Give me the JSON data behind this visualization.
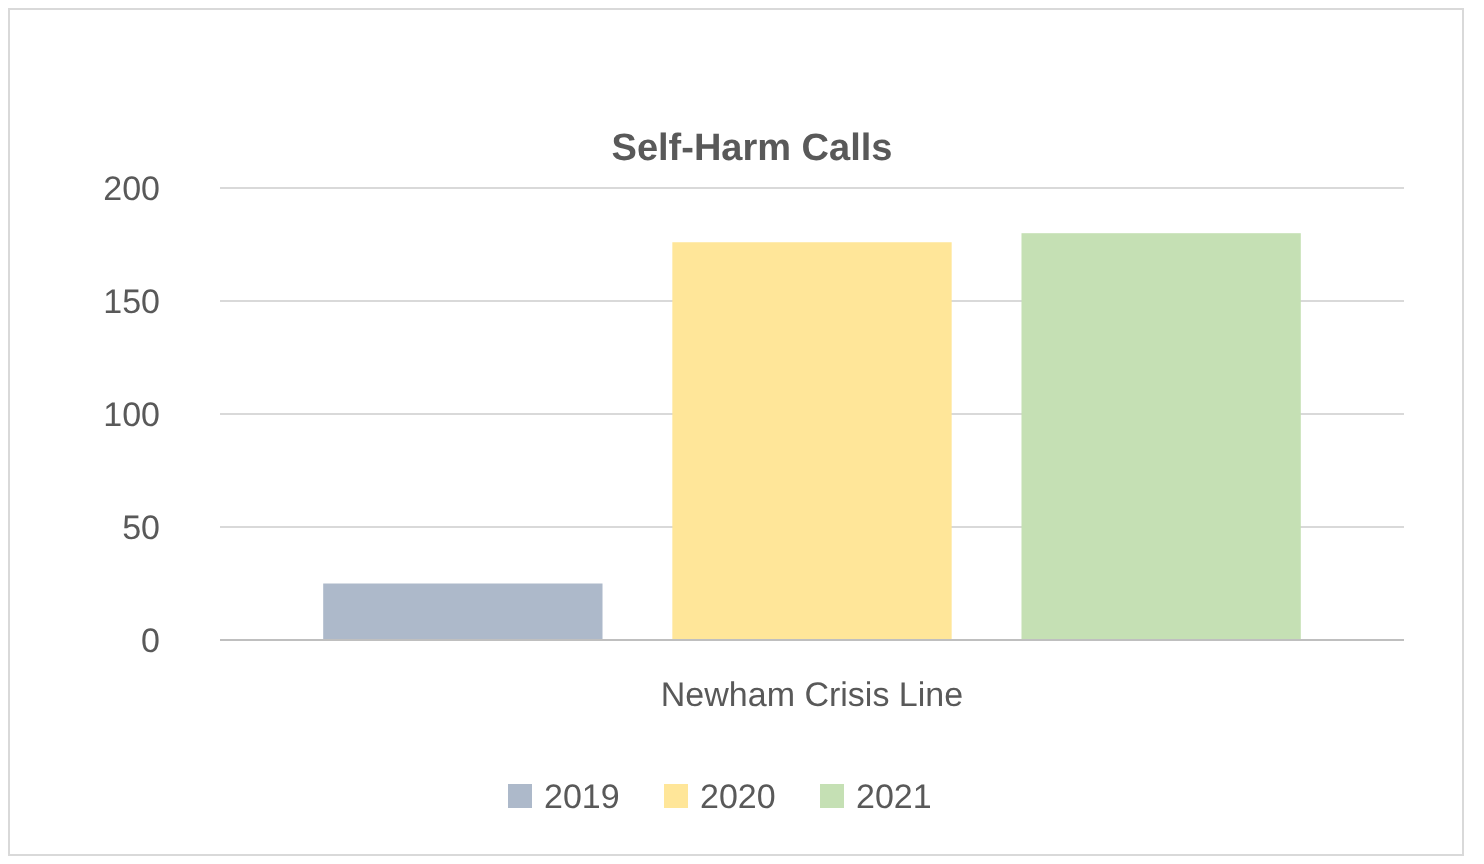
{
  "chart_data": {
    "type": "bar",
    "title": "Self-Harm Calls",
    "categories": [
      "Newham Crisis Line"
    ],
    "series": [
      {
        "name": "2019",
        "color": "#adb9ca",
        "values": [
          25
        ]
      },
      {
        "name": "2020",
        "color": "#ffe699",
        "values": [
          176
        ]
      },
      {
        "name": "2021",
        "color": "#c5e0b4",
        "values": [
          180
        ]
      }
    ],
    "ylim": [
      0,
      200
    ],
    "yticks": [
      0,
      50,
      100,
      150,
      200
    ],
    "grid": "y",
    "legend": "bottom"
  }
}
